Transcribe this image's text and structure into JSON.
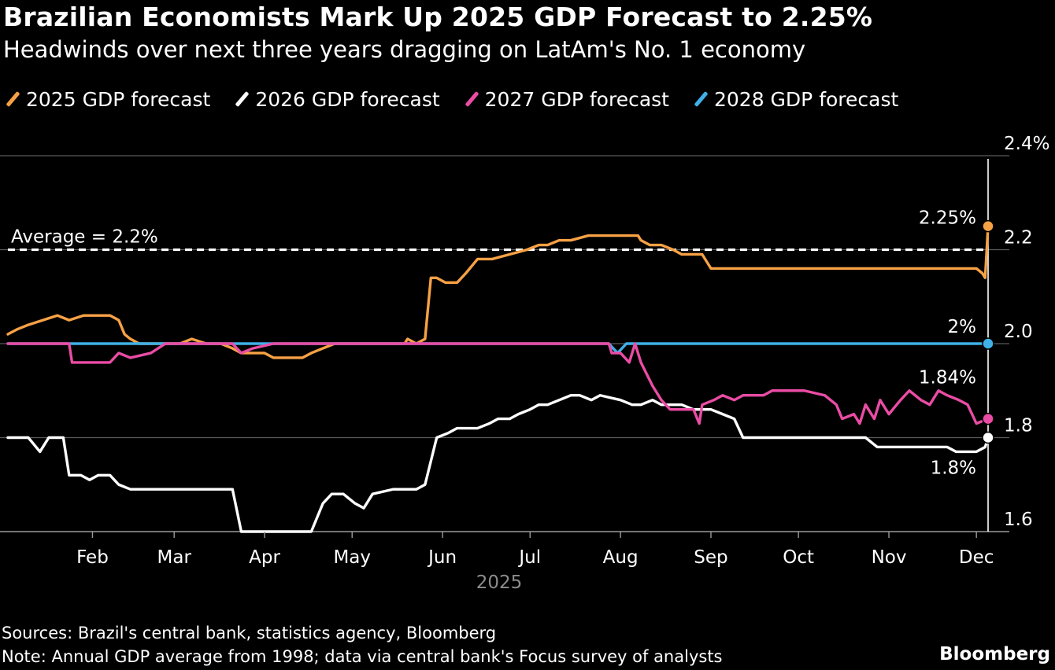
{
  "header": {
    "title": "Brazilian Economists Mark Up 2025 GDP Forecast to 2.25%",
    "subtitle": "Headwinds over next three years dragging on LatAm's No. 1 economy"
  },
  "footer": {
    "source": "Sources: Brazil's central bank, statistics agency, Bloomberg",
    "note": "Note: Annual GDP average from 1998; data via central bank's Focus survey of analysts",
    "brand": "Bloomberg"
  },
  "chart_data": {
    "type": "line",
    "title": "Brazilian Economists Mark Up 2025 GDP Forecast to 2.25%",
    "subtitle": "Headwinds over next three years dragging on LatAm's No. 1 economy",
    "xlabel": "2025",
    "ylabel": "",
    "x_ticks": [
      "Feb",
      "Mar",
      "Apr",
      "May",
      "Jun",
      "Jul",
      "Aug",
      "Sep",
      "Oct",
      "Nov",
      "Dec"
    ],
    "x_range": [
      "2025-01-03",
      "2025-12-05"
    ],
    "y_ticks": [
      "1.6",
      "1.8",
      "2.0",
      "2.2",
      "2.4%"
    ],
    "ylim": [
      1.6,
      2.4
    ],
    "grid": true,
    "legend": "top",
    "reference_line": {
      "label": "Average = 2.2%",
      "value": 2.2
    },
    "marker_date": "2025-12-05",
    "series": [
      {
        "name": "2025 GDP forecast",
        "color": "#f7a145",
        "end_label": "2.25%",
        "points": [
          [
            "2025-01-03",
            2.02
          ],
          [
            "2025-01-06",
            2.03
          ],
          [
            "2025-01-10",
            2.04
          ],
          [
            "2025-01-15",
            2.05
          ],
          [
            "2025-01-20",
            2.06
          ],
          [
            "2025-01-24",
            2.05
          ],
          [
            "2025-01-29",
            2.06
          ],
          [
            "2025-02-03",
            2.06
          ],
          [
            "2025-02-07",
            2.06
          ],
          [
            "2025-02-10",
            2.05
          ],
          [
            "2025-02-12",
            2.02
          ],
          [
            "2025-02-14",
            2.01
          ],
          [
            "2025-02-17",
            2.0
          ],
          [
            "2025-02-24",
            2.0
          ],
          [
            "2025-02-28",
            2.0
          ],
          [
            "2025-03-03",
            2.0
          ],
          [
            "2025-03-07",
            2.01
          ],
          [
            "2025-03-12",
            2.0
          ],
          [
            "2025-03-17",
            2.0
          ],
          [
            "2025-03-21",
            1.99
          ],
          [
            "2025-03-24",
            1.98
          ],
          [
            "2025-03-28",
            1.98
          ],
          [
            "2025-04-01",
            1.98
          ],
          [
            "2025-04-04",
            1.97
          ],
          [
            "2025-04-07",
            1.97
          ],
          [
            "2025-04-11",
            1.97
          ],
          [
            "2025-04-14",
            1.97
          ],
          [
            "2025-04-17",
            1.98
          ],
          [
            "2025-04-21",
            1.99
          ],
          [
            "2025-04-25",
            2.0
          ],
          [
            "2025-04-30",
            2.0
          ],
          [
            "2025-05-05",
            2.0
          ],
          [
            "2025-05-12",
            2.0
          ],
          [
            "2025-05-19",
            2.0
          ],
          [
            "2025-05-20",
            2.01
          ],
          [
            "2025-05-23",
            2.0
          ],
          [
            "2025-05-26",
            2.01
          ],
          [
            "2025-05-28",
            2.14
          ],
          [
            "2025-05-30",
            2.14
          ],
          [
            "2025-06-02",
            2.13
          ],
          [
            "2025-06-04",
            2.13
          ],
          [
            "2025-06-06",
            2.13
          ],
          [
            "2025-06-09",
            2.15
          ],
          [
            "2025-06-13",
            2.18
          ],
          [
            "2025-06-18",
            2.18
          ],
          [
            "2025-06-24",
            2.19
          ],
          [
            "2025-06-30",
            2.2
          ],
          [
            "2025-07-04",
            2.21
          ],
          [
            "2025-07-07",
            2.21
          ],
          [
            "2025-07-11",
            2.22
          ],
          [
            "2025-07-15",
            2.22
          ],
          [
            "2025-07-21",
            2.23
          ],
          [
            "2025-07-25",
            2.23
          ],
          [
            "2025-08-01",
            2.23
          ],
          [
            "2025-08-07",
            2.23
          ],
          [
            "2025-08-08",
            2.22
          ],
          [
            "2025-08-11",
            2.21
          ],
          [
            "2025-08-15",
            2.21
          ],
          [
            "2025-08-19",
            2.2
          ],
          [
            "2025-08-22",
            2.19
          ],
          [
            "2025-08-26",
            2.19
          ],
          [
            "2025-08-29",
            2.19
          ],
          [
            "2025-09-01",
            2.16
          ],
          [
            "2025-09-05",
            2.16
          ],
          [
            "2025-09-12",
            2.16
          ],
          [
            "2025-09-19",
            2.16
          ],
          [
            "2025-09-26",
            2.16
          ],
          [
            "2025-10-03",
            2.16
          ],
          [
            "2025-10-10",
            2.16
          ],
          [
            "2025-10-17",
            2.16
          ],
          [
            "2025-10-24",
            2.16
          ],
          [
            "2025-10-31",
            2.16
          ],
          [
            "2025-11-07",
            2.16
          ],
          [
            "2025-11-14",
            2.16
          ],
          [
            "2025-11-21",
            2.16
          ],
          [
            "2025-11-28",
            2.16
          ],
          [
            "2025-12-01",
            2.16
          ],
          [
            "2025-12-03",
            2.15
          ],
          [
            "2025-12-04",
            2.14
          ],
          [
            "2025-12-05",
            2.25
          ]
        ]
      },
      {
        "name": "2026 GDP forecast",
        "color": "#ffffff",
        "end_label": "1.8%",
        "points": [
          [
            "2025-01-03",
            1.8
          ],
          [
            "2025-01-10",
            1.8
          ],
          [
            "2025-01-14",
            1.77
          ],
          [
            "2025-01-17",
            1.8
          ],
          [
            "2025-01-22",
            1.8
          ],
          [
            "2025-01-24",
            1.72
          ],
          [
            "2025-01-28",
            1.72
          ],
          [
            "2025-01-31",
            1.71
          ],
          [
            "2025-02-03",
            1.72
          ],
          [
            "2025-02-07",
            1.72
          ],
          [
            "2025-02-10",
            1.7
          ],
          [
            "2025-02-14",
            1.69
          ],
          [
            "2025-02-21",
            1.69
          ],
          [
            "2025-03-07",
            1.69
          ],
          [
            "2025-03-14",
            1.69
          ],
          [
            "2025-03-21",
            1.69
          ],
          [
            "2025-03-24",
            1.6
          ],
          [
            "2025-04-01",
            1.6
          ],
          [
            "2025-04-08",
            1.6
          ],
          [
            "2025-04-14",
            1.6
          ],
          [
            "2025-04-17",
            1.6
          ],
          [
            "2025-04-21",
            1.66
          ],
          [
            "2025-04-24",
            1.68
          ],
          [
            "2025-04-28",
            1.68
          ],
          [
            "2025-05-02",
            1.66
          ],
          [
            "2025-05-05",
            1.65
          ],
          [
            "2025-05-08",
            1.68
          ],
          [
            "2025-05-15",
            1.69
          ],
          [
            "2025-05-23",
            1.69
          ],
          [
            "2025-05-26",
            1.7
          ],
          [
            "2025-05-30",
            1.8
          ],
          [
            "2025-06-03",
            1.81
          ],
          [
            "2025-06-06",
            1.82
          ],
          [
            "2025-06-13",
            1.82
          ],
          [
            "2025-06-17",
            1.83
          ],
          [
            "2025-06-20",
            1.84
          ],
          [
            "2025-06-24",
            1.84
          ],
          [
            "2025-06-27",
            1.85
          ],
          [
            "2025-07-01",
            1.86
          ],
          [
            "2025-07-04",
            1.87
          ],
          [
            "2025-07-07",
            1.87
          ],
          [
            "2025-07-11",
            1.88
          ],
          [
            "2025-07-15",
            1.89
          ],
          [
            "2025-07-18",
            1.89
          ],
          [
            "2025-07-22",
            1.88
          ],
          [
            "2025-07-25",
            1.89
          ],
          [
            "2025-08-01",
            1.88
          ],
          [
            "2025-08-05",
            1.87
          ],
          [
            "2025-08-08",
            1.87
          ],
          [
            "2025-08-12",
            1.88
          ],
          [
            "2025-08-15",
            1.87
          ],
          [
            "2025-08-19",
            1.87
          ],
          [
            "2025-08-22",
            1.87
          ],
          [
            "2025-08-26",
            1.86
          ],
          [
            "2025-08-29",
            1.86
          ],
          [
            "2025-09-01",
            1.86
          ],
          [
            "2025-09-05",
            1.85
          ],
          [
            "2025-09-09",
            1.84
          ],
          [
            "2025-09-12",
            1.8
          ],
          [
            "2025-09-19",
            1.8
          ],
          [
            "2025-09-26",
            1.8
          ],
          [
            "2025-10-03",
            1.8
          ],
          [
            "2025-10-10",
            1.8
          ],
          [
            "2025-10-17",
            1.8
          ],
          [
            "2025-10-24",
            1.8
          ],
          [
            "2025-10-28",
            1.78
          ],
          [
            "2025-11-07",
            1.78
          ],
          [
            "2025-11-14",
            1.78
          ],
          [
            "2025-11-21",
            1.78
          ],
          [
            "2025-11-24",
            1.77
          ],
          [
            "2025-11-28",
            1.77
          ],
          [
            "2025-12-01",
            1.77
          ],
          [
            "2025-12-04",
            1.78
          ],
          [
            "2025-12-05",
            1.8
          ]
        ]
      },
      {
        "name": "2027 GDP forecast",
        "color": "#ea4ca5",
        "end_label": "1.84%",
        "points": [
          [
            "2025-01-03",
            2.0
          ],
          [
            "2025-01-17",
            2.0
          ],
          [
            "2025-01-24",
            2.0
          ],
          [
            "2025-01-25",
            1.96
          ],
          [
            "2025-02-03",
            1.96
          ],
          [
            "2025-02-07",
            1.96
          ],
          [
            "2025-02-10",
            1.98
          ],
          [
            "2025-02-14",
            1.97
          ],
          [
            "2025-02-21",
            1.98
          ],
          [
            "2025-02-26",
            2.0
          ],
          [
            "2025-03-03",
            2.0
          ],
          [
            "2025-03-21",
            2.0
          ],
          [
            "2025-03-24",
            1.98
          ],
          [
            "2025-03-28",
            1.99
          ],
          [
            "2025-04-04",
            2.0
          ],
          [
            "2025-04-30",
            2.0
          ],
          [
            "2025-05-30",
            2.0
          ],
          [
            "2025-06-02",
            2.0
          ],
          [
            "2025-06-06",
            2.0
          ],
          [
            "2025-06-13",
            2.0
          ],
          [
            "2025-06-20",
            2.0
          ],
          [
            "2025-06-27",
            2.0
          ],
          [
            "2025-07-04",
            2.0
          ],
          [
            "2025-07-11",
            2.0
          ],
          [
            "2025-07-18",
            2.0
          ],
          [
            "2025-07-25",
            2.0
          ],
          [
            "2025-07-28",
            2.0
          ],
          [
            "2025-07-29",
            1.98
          ],
          [
            "2025-08-01",
            1.98
          ],
          [
            "2025-08-04",
            1.96
          ],
          [
            "2025-08-06",
            2.0
          ],
          [
            "2025-08-08",
            1.96
          ],
          [
            "2025-08-12",
            1.91
          ],
          [
            "2025-08-15",
            1.88
          ],
          [
            "2025-08-18",
            1.86
          ],
          [
            "2025-08-22",
            1.86
          ],
          [
            "2025-08-26",
            1.86
          ],
          [
            "2025-08-28",
            1.83
          ],
          [
            "2025-08-29",
            1.87
          ],
          [
            "2025-09-02",
            1.88
          ],
          [
            "2025-09-05",
            1.89
          ],
          [
            "2025-09-09",
            1.88
          ],
          [
            "2025-09-12",
            1.89
          ],
          [
            "2025-09-19",
            1.89
          ],
          [
            "2025-09-22",
            1.9
          ],
          [
            "2025-09-26",
            1.9
          ],
          [
            "2025-10-03",
            1.9
          ],
          [
            "2025-10-10",
            1.89
          ],
          [
            "2025-10-14",
            1.87
          ],
          [
            "2025-10-16",
            1.84
          ],
          [
            "2025-10-20",
            1.85
          ],
          [
            "2025-10-22",
            1.83
          ],
          [
            "2025-10-24",
            1.87
          ],
          [
            "2025-10-27",
            1.84
          ],
          [
            "2025-10-29",
            1.88
          ],
          [
            "2025-11-01",
            1.85
          ],
          [
            "2025-11-05",
            1.88
          ],
          [
            "2025-11-08",
            1.9
          ],
          [
            "2025-11-12",
            1.88
          ],
          [
            "2025-11-15",
            1.87
          ],
          [
            "2025-11-18",
            1.9
          ],
          [
            "2025-11-21",
            1.89
          ],
          [
            "2025-11-25",
            1.88
          ],
          [
            "2025-11-28",
            1.87
          ],
          [
            "2025-12-01",
            1.83
          ],
          [
            "2025-12-05",
            1.84
          ]
        ]
      },
      {
        "name": "2028 GDP forecast",
        "color": "#3fb0e8",
        "end_label": "2%",
        "points": [
          [
            "2025-01-03",
            2.0
          ],
          [
            "2025-07-28",
            2.0
          ],
          [
            "2025-07-31",
            1.98
          ],
          [
            "2025-08-03",
            2.0
          ],
          [
            "2025-12-05",
            2.0
          ]
        ]
      }
    ]
  }
}
